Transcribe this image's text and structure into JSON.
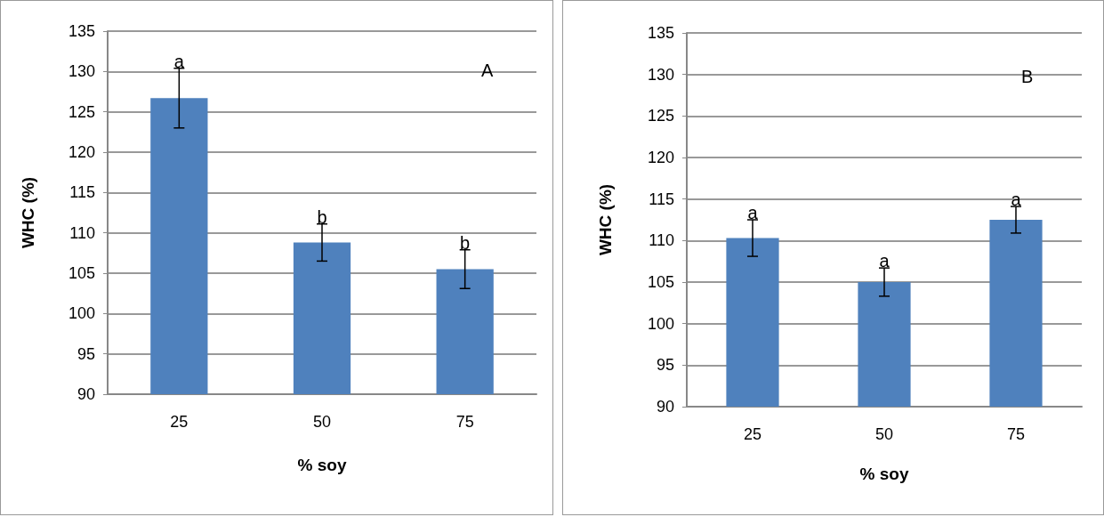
{
  "chart_data": [
    {
      "type": "bar",
      "categories": [
        "25",
        "50",
        "75"
      ],
      "values": [
        126.7,
        108.8,
        105.5
      ],
      "errors": [
        3.7,
        2.3,
        2.4
      ],
      "color": "#4f81bd",
      "xlabel": "% soy",
      "ylabel": "WHC (%)",
      "ylim": [
        90,
        135
      ],
      "yticks": [
        90,
        95,
        100,
        105,
        110,
        115,
        120,
        125,
        130,
        135
      ],
      "grid": "y",
      "annotations": [
        {
          "text": "a",
          "x": "25",
          "y": 130.4
        },
        {
          "text": "b",
          "x": "50",
          "y": 111.1
        },
        {
          "text": "b",
          "x": "75",
          "y": 107.9
        },
        "A"
      ]
    },
    {
      "type": "bar",
      "categories": [
        "25",
        "50",
        "75"
      ],
      "values": [
        110.3,
        105.0,
        112.5
      ],
      "errors": [
        2.2,
        1.7,
        1.6
      ],
      "color": "#4f81bd",
      "xlabel": "% soy",
      "ylabel": "WHC (%)",
      "ylim": [
        90,
        135
      ],
      "yticks": [
        90,
        95,
        100,
        105,
        110,
        115,
        120,
        125,
        130,
        135
      ],
      "grid": "y",
      "annotations": [
        {
          "text": "a",
          "x": "25",
          "y": 112.5
        },
        {
          "text": "a",
          "x": "50",
          "y": 106.7
        },
        {
          "text": "a",
          "x": "75",
          "y": 114.1
        },
        "B"
      ]
    }
  ]
}
